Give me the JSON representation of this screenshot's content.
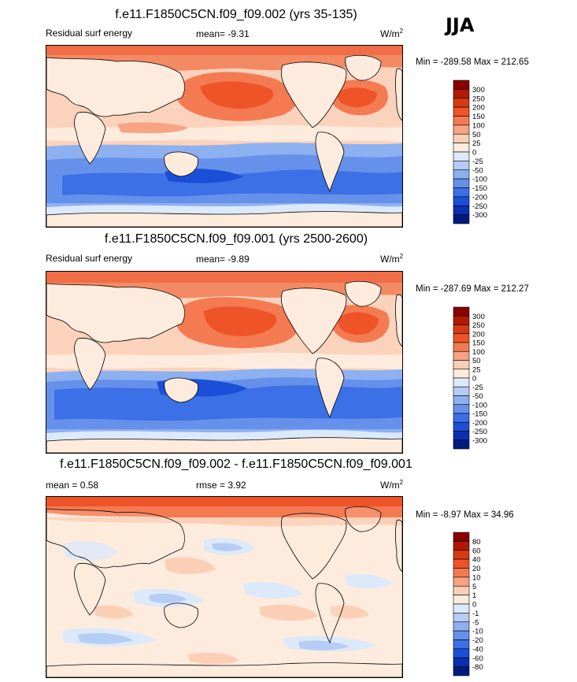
{
  "season": "JJA",
  "panels": [
    {
      "title": "f.e11.F1850C5CN.f09_f09.002 (yrs 35-135)",
      "left_label": "Residual surf energy",
      "center_label": "mean=  -9.31",
      "units_base": "W/m",
      "units_exp": "2",
      "minmax": "Min = -289.58 Max = 212.65"
    },
    {
      "title": "f.e11.F1850C5CN.f09_f09.001 (yrs 2500-2600)",
      "left_label": "Residual surf energy",
      "center_label": "mean=  -9.89",
      "units_base": "W/m",
      "units_exp": "2",
      "minmax": "Min = -287.69 Max = 212.27"
    },
    {
      "title": "f.e11.F1850C5CN.f09_f09.002 - f.e11.F1850C5CN.f09_f09.001",
      "left_label": "mean =   0.58",
      "center_label": "rmse =   3.92",
      "units_base": "W/m",
      "units_exp": "2",
      "minmax": "Min =  -8.97 Max =  34.96"
    }
  ],
  "chart_data": [
    {
      "type": "heatmap",
      "title": "f.e11.F1850C5CN.f09_f09.002 (yrs 35-135)",
      "variable": "Residual surf energy",
      "season": "JJA",
      "units": "W/m2",
      "mean": -9.31,
      "min": -289.58,
      "max": 212.65,
      "colorbar_levels": [
        300,
        250,
        200,
        150,
        100,
        50,
        25,
        0,
        -25,
        -50,
        -100,
        -150,
        -200,
        -250,
        -300
      ],
      "colorbar_colors": [
        "#8a0000",
        "#b01a00",
        "#d63a12",
        "#ee5428",
        "#f47a52",
        "#f7a384",
        "#fbcfb6",
        "#fdebdd",
        "#dce9fa",
        "#b5cdf5",
        "#8db0f0",
        "#6591eb",
        "#3c70e6",
        "#1b4fd8",
        "#0a2fb0",
        "#001a80"
      ]
    },
    {
      "type": "heatmap",
      "title": "f.e11.F1850C5CN.f09_f09.001 (yrs 2500-2600)",
      "variable": "Residual surf energy",
      "season": "JJA",
      "units": "W/m2",
      "mean": -9.89,
      "min": -287.69,
      "max": 212.27,
      "colorbar_levels": [
        300,
        250,
        200,
        150,
        100,
        50,
        25,
        0,
        -25,
        -50,
        -100,
        -150,
        -200,
        -250,
        -300
      ],
      "colorbar_colors": [
        "#8a0000",
        "#b01a00",
        "#d63a12",
        "#ee5428",
        "#f47a52",
        "#f7a384",
        "#fbcfb6",
        "#fdebdd",
        "#dce9fa",
        "#b5cdf5",
        "#8db0f0",
        "#6591eb",
        "#3c70e6",
        "#1b4fd8",
        "#0a2fb0",
        "#001a80"
      ]
    },
    {
      "type": "heatmap",
      "title": "f.e11.F1850C5CN.f09_f09.002 - f.e11.F1850C5CN.f09_f09.001",
      "units": "W/m2",
      "mean": 0.58,
      "rmse": 3.92,
      "min": -8.97,
      "max": 34.96,
      "colorbar_levels": [
        80,
        60,
        40,
        20,
        10,
        5,
        1,
        0,
        -1,
        -5,
        -10,
        -20,
        -40,
        -60,
        -80
      ],
      "colorbar_colors": [
        "#8a0000",
        "#b01a00",
        "#d63a12",
        "#ee5428",
        "#f47a52",
        "#f7a384",
        "#fbcfb6",
        "#fdebdd",
        "#dce9fa",
        "#b5cdf5",
        "#8db0f0",
        "#6591eb",
        "#3c70e6",
        "#1b4fd8",
        "#0a2fb0",
        "#001a80"
      ]
    }
  ]
}
